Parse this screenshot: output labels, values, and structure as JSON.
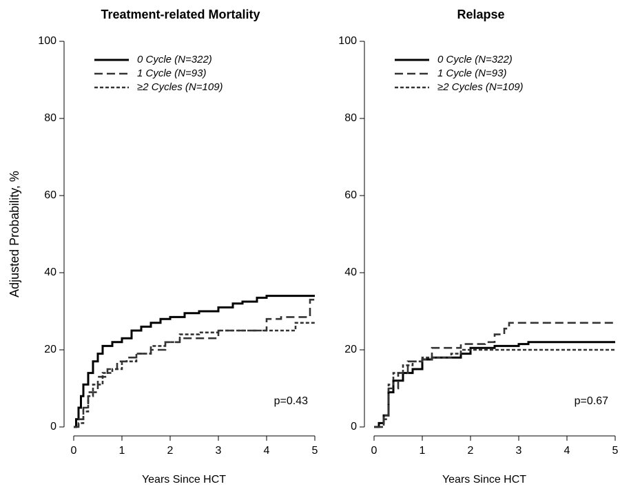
{
  "chart_data": [
    {
      "type": "line",
      "step": "post",
      "title": "Treatment-related Mortality",
      "ylabel": "Adjusted Probability, %",
      "xlabel": "Years Since HCT",
      "annotation": "p=0.43",
      "xlim": [
        0,
        5
      ],
      "xticks": [
        0,
        1,
        2,
        3,
        4,
        5
      ],
      "ylim": [
        0,
        100
      ],
      "yticks": [
        0,
        20,
        40,
        60,
        80,
        100
      ],
      "grid": false,
      "legend": "upper left",
      "series": [
        {
          "name": "0 Cycle (N=322)",
          "color": "#000000",
          "linestyle": "solid",
          "x": [
            0,
            0.05,
            0.1,
            0.15,
            0.2,
            0.3,
            0.4,
            0.5,
            0.6,
            0.8,
            1,
            1.2,
            1.4,
            1.6,
            1.8,
            2,
            2.3,
            2.6,
            3,
            3.3,
            3.5,
            3.8,
            4,
            4.5,
            5
          ],
          "values": [
            0,
            2,
            5,
            8,
            11,
            14,
            17,
            19,
            21,
            22,
            23,
            25,
            26,
            27,
            28,
            28.5,
            29.5,
            30,
            31,
            32,
            32.5,
            33.5,
            34,
            34,
            34
          ]
        },
        {
          "name": "1 Cycle (N=93)",
          "color": "#333333",
          "linestyle": "dashed",
          "x": [
            0,
            0.1,
            0.2,
            0.3,
            0.5,
            0.7,
            0.9,
            1.1,
            1.3,
            1.6,
            1.9,
            2.2,
            2.8,
            3.0,
            3.5,
            3.9,
            4.0,
            4.3,
            4.8,
            4.9,
            5
          ],
          "values": [
            0,
            2,
            5,
            9,
            13,
            15,
            17,
            18,
            19,
            20,
            22,
            23,
            23,
            25,
            25,
            25,
            28,
            28.5,
            28.5,
            33,
            33
          ]
        },
        {
          "name": "≥2 Cycles (N=109)",
          "color": "#333333",
          "linestyle": "dotted",
          "x": [
            0,
            0.1,
            0.2,
            0.3,
            0.4,
            0.6,
            0.8,
            1,
            1.3,
            1.6,
            1.9,
            2.2,
            2.6,
            3,
            3.5,
            4,
            4.6,
            5
          ],
          "values": [
            0,
            1,
            4,
            8,
            11,
            14,
            15,
            17,
            19,
            21,
            22,
            24,
            24.5,
            25,
            25,
            25,
            27,
            27
          ]
        }
      ]
    },
    {
      "type": "line",
      "step": "post",
      "title": "Relapse",
      "xlabel": "Years Since HCT",
      "annotation": "p=0.67",
      "xlim": [
        0,
        5
      ],
      "xticks": [
        0,
        1,
        2,
        3,
        4,
        5
      ],
      "ylim": [
        0,
        100
      ],
      "yticks": [
        0,
        20,
        40,
        60,
        80,
        100
      ],
      "grid": false,
      "legend": "upper left",
      "series": [
        {
          "name": "0 Cycle (N=322)",
          "color": "#000000",
          "linestyle": "solid",
          "x": [
            0,
            0.1,
            0.2,
            0.3,
            0.4,
            0.6,
            0.8,
            1,
            1.2,
            1.5,
            1.8,
            2,
            2.5,
            3,
            3.2,
            4,
            5
          ],
          "values": [
            0,
            1,
            3,
            9,
            12,
            14,
            15,
            17.5,
            18,
            18,
            19,
            20.5,
            21,
            21.5,
            22,
            22,
            22
          ]
        },
        {
          "name": "1 Cycle (N=93)",
          "color": "#333333",
          "linestyle": "dashed",
          "x": [
            0,
            0.1,
            0.2,
            0.3,
            0.5,
            0.7,
            1,
            1.2,
            1.5,
            1.8,
            2,
            2.3,
            2.5,
            2.7,
            2.8,
            5
          ],
          "values": [
            0,
            0,
            2,
            10,
            14,
            17,
            17.5,
            20.5,
            20.5,
            21.5,
            21.5,
            22,
            24,
            25.5,
            27,
            27
          ]
        },
        {
          "name": "≥2 Cycles (N=109)",
          "color": "#333333",
          "linestyle": "dotted",
          "x": [
            0,
            0.2,
            0.3,
            0.4,
            0.6,
            0.8,
            1,
            1.2,
            1.6,
            1.8,
            2,
            5
          ],
          "values": [
            0,
            3,
            11,
            14,
            16,
            17,
            18,
            18,
            19,
            20,
            20,
            20
          ]
        }
      ]
    }
  ]
}
